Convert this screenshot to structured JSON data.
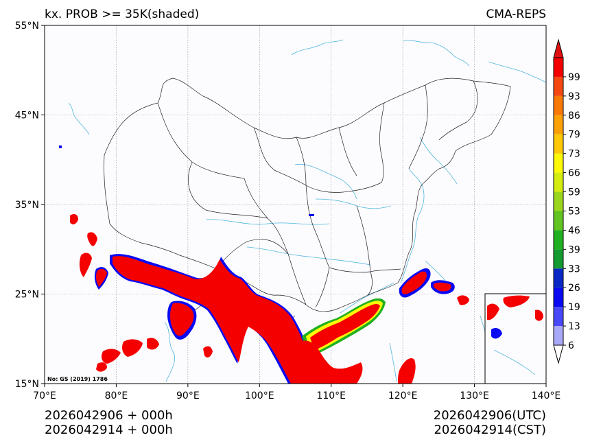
{
  "header": {
    "title_left": "kx. PROB >= 35K(shaded)",
    "title_right": "CMA-REPS"
  },
  "footer": {
    "left_line1": "2026042906  +  000h",
    "left_line2": "2026042914  +  000h",
    "right_line1": "2026042906(UTC)",
    "right_line2": "2026042914(CST)"
  },
  "map": {
    "credit": "No: GS (2019) 1786",
    "lon_ticks": [
      "70°E",
      "80°E",
      "90°E",
      "100°E",
      "110°E",
      "120°E",
      "130°E",
      "140°E"
    ],
    "lat_ticks": [
      "15°N",
      "25°N",
      "35°N",
      "45°N",
      "55°N"
    ],
    "shade_color": "#f40000",
    "river_color": "#4fb7dd",
    "border_color": "#222222"
  },
  "colorbar": {
    "labels": [
      "6",
      "13",
      "19",
      "26",
      "33",
      "39",
      "46",
      "53",
      "59",
      "66",
      "73",
      "79",
      "86",
      "93",
      "99"
    ],
    "colors": [
      "#a8a8f8",
      "#4848f8",
      "#0a0af2",
      "#0a28c4",
      "#139a30",
      "#20b020",
      "#62c420",
      "#9ad61c",
      "#d4ec10",
      "#fcf808",
      "#fcc808",
      "#fca008",
      "#f87808",
      "#f44810",
      "#f40000"
    ],
    "under_color": "#ffffff",
    "over_color": "#e01010"
  }
}
